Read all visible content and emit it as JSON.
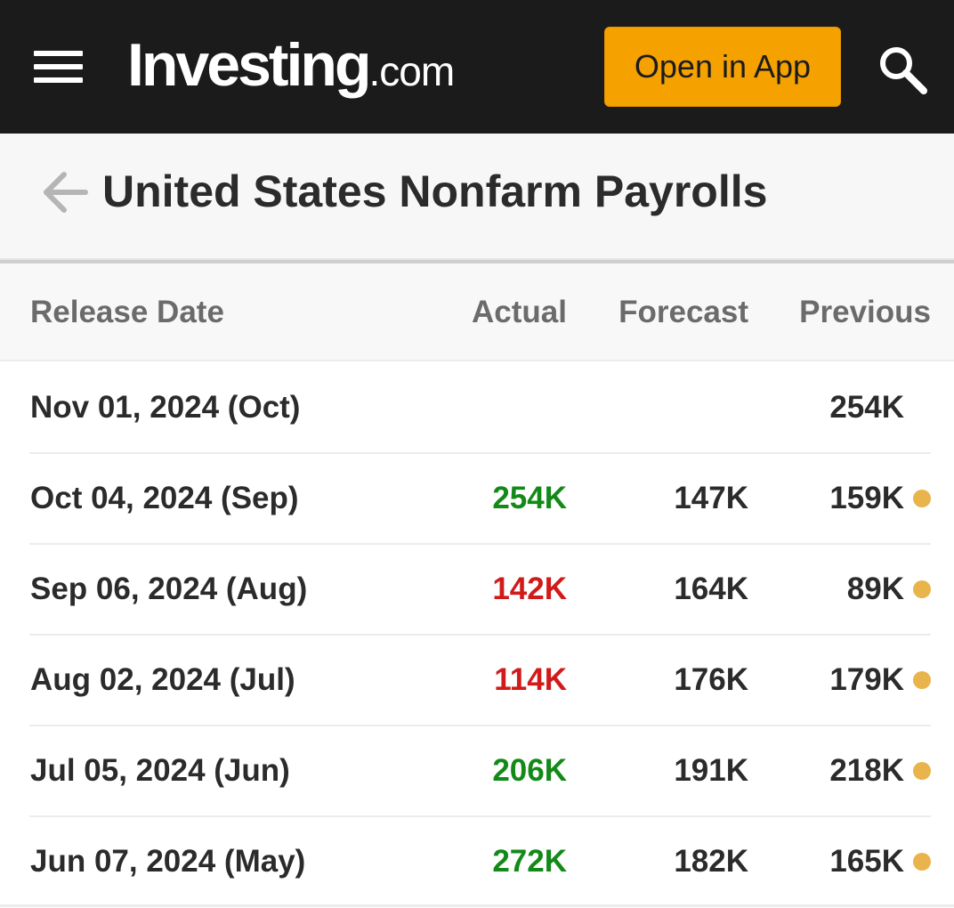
{
  "header": {
    "logo_main": "Investing",
    "logo_tld": ".com",
    "open_app_label": "Open in App",
    "icons": {
      "menu": "hamburger-menu-icon",
      "search": "search-icon"
    }
  },
  "page": {
    "title": "United States Nonfarm Payrolls",
    "back_icon": "arrow-left-icon"
  },
  "table": {
    "columns": {
      "date": "Release Date",
      "actual": "Actual",
      "forecast": "Forecast",
      "previous": "Previous"
    },
    "rows": [
      {
        "date": "Nov 01, 2024 (Oct)",
        "actual": "",
        "actual_status": "none",
        "forecast": "",
        "previous": "254K",
        "revised": false
      },
      {
        "date": "Oct 04, 2024 (Sep)",
        "actual": "254K",
        "actual_status": "better",
        "forecast": "147K",
        "previous": "159K",
        "revised": true
      },
      {
        "date": "Sep 06, 2024 (Aug)",
        "actual": "142K",
        "actual_status": "worse",
        "forecast": "164K",
        "previous": "89K",
        "revised": true
      },
      {
        "date": "Aug 02, 2024 (Jul)",
        "actual": "114K",
        "actual_status": "worse",
        "forecast": "176K",
        "previous": "179K",
        "revised": true
      },
      {
        "date": "Jul 05, 2024 (Jun)",
        "actual": "206K",
        "actual_status": "better",
        "forecast": "191K",
        "previous": "218K",
        "revised": true
      },
      {
        "date": "Jun 07, 2024 (May)",
        "actual": "272K",
        "actual_status": "better",
        "forecast": "182K",
        "previous": "165K",
        "revised": true
      }
    ]
  },
  "colors": {
    "topbar_bg": "#1b1b1b",
    "accent_button": "#f5a100",
    "better": "#138a18",
    "worse": "#d11b1b",
    "revised_dot": "#e8b44b",
    "text": "#2b2b2b",
    "header_text": "#6b6b6b"
  }
}
